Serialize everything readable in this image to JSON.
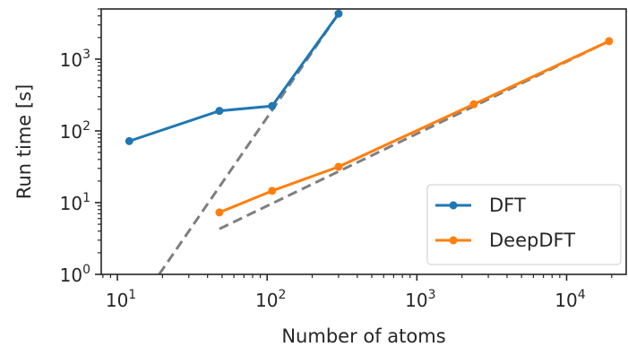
{
  "chart_data": {
    "type": "line",
    "xscale": "log",
    "yscale": "log",
    "xlabel": "Number of atoms",
    "ylabel": "Run time [s]",
    "xlim": [
      7.8,
      25000
    ],
    "ylim": [
      1,
      5000
    ],
    "xticks": [
      {
        "value": 10,
        "base": "10",
        "exp": "1"
      },
      {
        "value": 100,
        "base": "10",
        "exp": "2"
      },
      {
        "value": 1000,
        "base": "10",
        "exp": "3"
      },
      {
        "value": 10000,
        "base": "10",
        "exp": "4"
      }
    ],
    "yticks": [
      {
        "value": 1,
        "base": "10",
        "exp": "0"
      },
      {
        "value": 10,
        "base": "10",
        "exp": "1"
      },
      {
        "value": 100,
        "base": "10",
        "exp": "2"
      },
      {
        "value": 1000,
        "base": "10",
        "exp": "3"
      }
    ],
    "series": [
      {
        "name": "DFT",
        "color": "#1f77b4",
        "x": [
          12,
          48,
          108,
          300
        ],
        "y": [
          72,
          190,
          222,
          4300
        ]
      },
      {
        "name": "DeepDFT",
        "color": "#ff7f0e",
        "x": [
          48,
          108,
          300,
          2400,
          19200
        ],
        "y": [
          7.3,
          14.6,
          31.6,
          235,
          1780
        ]
      }
    ],
    "reference_lines": [
      {
        "color": "#7f7f7f",
        "style": "dashed",
        "x": [
          19,
          300
        ],
        "y": [
          1,
          4300
        ]
      },
      {
        "color": "#7f7f7f",
        "style": "dashed",
        "x": [
          48,
          19200
        ],
        "y": [
          4.3,
          1780
        ]
      }
    ],
    "legend": {
      "position": "lower-right"
    },
    "grid": false
  }
}
